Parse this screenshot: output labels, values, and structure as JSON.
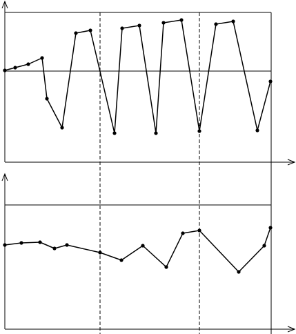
{
  "chart_data": [
    {
      "type": "line",
      "color": "#000000",
      "x": [
        0,
        15,
        34,
        54,
        61,
        83,
        103,
        124,
        159,
        170,
        195,
        219,
        230,
        256,
        282,
        306,
        331,
        366,
        385
      ],
      "values": [
        1,
        5,
        10,
        19,
        -40,
        -82,
        55,
        59,
        -90,
        62,
        66,
        -90,
        70,
        74,
        -87,
        68,
        72,
        -86,
        -15
      ],
      "xlim": [
        0,
        386
      ],
      "ylim": [
        -132,
        85
      ]
    },
    {
      "type": "line",
      "color": "#000000",
      "x": [
        0,
        24,
        51,
        72,
        90,
        138,
        169,
        200,
        234,
        258,
        282,
        339,
        376,
        385
      ],
      "values": [
        122,
        125,
        126,
        117,
        122,
        111,
        100,
        121,
        90,
        139,
        143,
        83,
        121,
        147
      ],
      "xlim": [
        0,
        386
      ],
      "ylim": [
        0,
        180
      ]
    }
  ]
}
